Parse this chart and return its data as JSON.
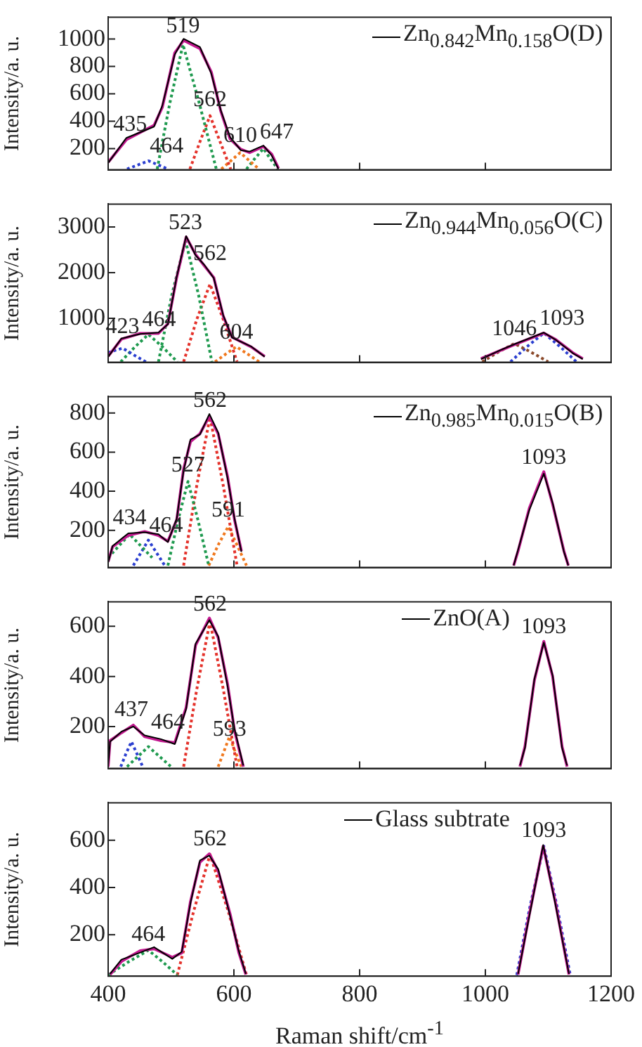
{
  "chart_data": [
    {
      "type": "line",
      "ylabel": "Intensity/a. u.",
      "xlim": [
        400,
        1200
      ],
      "xticks": [
        400,
        600,
        800,
        1000,
        1200
      ],
      "ylim": [
        45,
        1160
      ],
      "yticks": [
        200,
        400,
        600,
        800,
        1000
      ],
      "tick_labels": "y",
      "grid": false,
      "legend": "top right",
      "marker": "none",
      "series": [
        {
          "name": "Zn$_{0.842}$Mn$_{0.158}$O(D)",
          "color": "#000000",
          "x": [
            400,
            429,
            473,
            486,
            506,
            520,
            546,
            564,
            579,
            594,
            611,
            625,
            647,
            660,
            671
          ],
          "values": [
            95,
            278,
            360,
            512,
            888,
            1002,
            942,
            748,
            482,
            282,
            188,
            178,
            222,
            150,
            50
          ]
        },
        {
          "color": "#c2188f",
          "x": [
            400,
            429,
            473,
            486,
            506,
            520,
            546,
            564,
            579,
            594,
            611,
            625,
            647,
            660,
            671
          ],
          "values": [
            100,
            265,
            370,
            500,
            900,
            990,
            930,
            760,
            475,
            270,
            195,
            170,
            215,
            160,
            55
          ]
        },
        {
          "color": "#2b3fd0",
          "line_style": "dotted",
          "x": [
            430,
            447,
            464,
            480,
            495
          ],
          "values": [
            50,
            80,
            110,
            80,
            50
          ]
        },
        {
          "color": "#1f9a4f",
          "line_style": "dotted",
          "x": [
            478,
            498,
            519,
            545,
            572
          ],
          "values": [
            50,
            530,
            960,
            530,
            50
          ]
        },
        {
          "color": "#e4322b",
          "line_style": "dotted",
          "x": [
            530,
            546,
            562,
            578,
            595
          ],
          "values": [
            50,
            250,
            440,
            250,
            50
          ]
        },
        {
          "color": "#f0781e",
          "line_style": "dotted",
          "x": [
            580,
            595,
            610,
            625,
            640
          ],
          "values": [
            50,
            110,
            170,
            110,
            50
          ]
        },
        {
          "color": "#1f9a4f",
          "line_style": "dotted",
          "x": [
            620,
            633,
            647,
            658,
            670
          ],
          "values": [
            50,
            125,
            200,
            125,
            50
          ]
        }
      ],
      "annotations": [
        {
          "text": "519",
          "x": 519,
          "y": 990
        },
        {
          "text": "435",
          "x": 435,
          "y": 270
        },
        {
          "text": "464",
          "x": 464,
          "y": 110
        },
        {
          "text": "562",
          "x": 562,
          "y": 450
        },
        {
          "text": "610",
          "x": 610,
          "y": 190
        },
        {
          "text": "647",
          "x": 647,
          "y": 215
        }
      ]
    },
    {
      "type": "line",
      "ylabel": "Intensity/a. u.",
      "xlim": [
        400,
        1200
      ],
      "xticks": [
        400,
        600,
        800,
        1000,
        1200
      ],
      "ylim": [
        40,
        3500
      ],
      "yticks": [
        1000,
        2000,
        3000
      ],
      "tick_labels": "y",
      "grid": false,
      "legend": "top right",
      "marker": "none",
      "series": [
        {
          "name": "Zn$_{0.944}$Mn$_{0.056}$O(C)",
          "color": "#000000",
          "x": [
            400,
            421,
            451,
            480,
            495,
            509,
            524,
            539,
            553,
            568,
            583,
            597,
            627,
            649,
            800,
            993,
            1023,
            1045,
            1093,
            1111,
            1139,
            1155
          ],
          "values": [
            160,
            560,
            660,
            690,
            870,
            1910,
            2800,
            2380,
            2170,
            1880,
            1070,
            580,
            390,
            160,
            null,
            110,
            300,
            430,
            690,
            540,
            240,
            110
          ]
        },
        {
          "color": "#c2188f",
          "x": [
            400,
            421,
            451,
            480,
            495,
            509,
            524,
            539,
            553,
            568,
            583,
            597,
            627,
            649,
            800,
            993,
            1023,
            1045,
            1093,
            1111,
            1139,
            1155
          ],
          "values": [
            170,
            546,
            672,
            672,
            880,
            1894,
            2780,
            2400,
            2150,
            1894,
            1050,
            590,
            380,
            170,
            null,
            120,
            293,
            420,
            680,
            546,
            250,
            120
          ]
        },
        {
          "color": "#2b3fd0",
          "line_style": "dotted",
          "x": [
            400,
            411,
            423,
            441,
            460
          ],
          "values": [
            250,
            300,
            350,
            200,
            50
          ]
        },
        {
          "color": "#1f9a4f",
          "line_style": "dotted",
          "x": [
            420,
            442,
            464,
            487,
            510
          ],
          "values": [
            50,
            370,
            650,
            370,
            50
          ]
        },
        {
          "color": "#1f9a4f",
          "line_style": "dotted",
          "x": [
            480,
            501,
            523,
            544,
            565
          ],
          "values": [
            50,
            1500,
            2700,
            1500,
            50
          ]
        },
        {
          "color": "#e4322b",
          "line_style": "dotted",
          "x": [
            520,
            541,
            562,
            583,
            605
          ],
          "values": [
            50,
            980,
            1750,
            980,
            50
          ]
        },
        {
          "color": "#f0781e",
          "line_style": "dotted",
          "x": [
            570,
            587,
            604,
            622,
            640
          ],
          "values": [
            50,
            220,
            380,
            220,
            50
          ]
        },
        {
          "color": "#8b4a2b",
          "line_style": "dotted",
          "x": [
            995,
            1020,
            1046,
            1073,
            1100
          ],
          "values": [
            50,
            260,
            450,
            260,
            50
          ]
        },
        {
          "color": "#2b3fd0",
          "line_style": "dotted",
          "x": [
            1040,
            1066,
            1093,
            1119,
            1145
          ],
          "values": [
            50,
            380,
            680,
            380,
            50
          ]
        }
      ],
      "annotations": [
        {
          "text": "523",
          "x": 523,
          "y": 2780
        },
        {
          "text": "562",
          "x": 562,
          "y": 2100
        },
        {
          "text": "423",
          "x": 423,
          "y": 500
        },
        {
          "text": "464",
          "x": 464,
          "y": 650
        },
        {
          "text": "604",
          "x": 604,
          "y": 380
        },
        {
          "text": "1046",
          "x": 1046,
          "y": 450
        },
        {
          "text": "1093",
          "x": 1093,
          "y": 680
        }
      ]
    },
    {
      "type": "line",
      "ylabel": "Intensity/a. u.",
      "xlim": [
        400,
        1200
      ],
      "xticks": [
        400,
        600,
        800,
        1000,
        1200
      ],
      "ylim": [
        10,
        884
      ],
      "yticks": [
        200,
        400,
        600,
        800
      ],
      "tick_labels": "y",
      "grid": false,
      "legend": "top right",
      "marker": "none",
      "series": [
        {
          "name": "Zn$_{0.985}$Mn$_{0.015}$O(B)",
          "color": "#000000",
          "x": [
            400,
            407,
            432,
            458,
            480,
            495,
            509,
            520,
            531,
            546,
            561,
            575,
            590,
            601,
            612,
            800,
            1045,
            1052,
            1070,
            1093,
            1107,
            1125,
            1132
          ],
          "values": [
            35,
            120,
            185,
            190,
            180,
            140,
            260,
            505,
            665,
            690,
            795,
            700,
            465,
            260,
            90,
            null,
            20,
            100,
            305,
            490,
            340,
            90,
            20
          ]
        },
        {
          "color": "#c2188f",
          "x": [
            400,
            407,
            432,
            458,
            480,
            495,
            509,
            520,
            531,
            546,
            561,
            575,
            590,
            601,
            612,
            800,
            1045,
            1052,
            1070,
            1093,
            1107,
            1125,
            1132
          ],
          "values": [
            40,
            116,
            174,
            194,
            174,
            144,
            254,
            514,
            654,
            694,
            784,
            694,
            474,
            254,
            94,
            null,
            20,
            94,
            314,
            500,
            334,
            94,
            20
          ]
        },
        {
          "color": "#1f9a4f",
          "line_style": "dotted",
          "x": [
            400,
            417,
            434,
            452,
            470
          ],
          "values": [
            60,
            120,
            180,
            120,
            60
          ]
        },
        {
          "color": "#2b3fd0",
          "line_style": "dotted",
          "x": [
            440,
            452,
            464,
            477,
            490
          ],
          "values": [
            20,
            85,
            150,
            85,
            20
          ]
        },
        {
          "color": "#1f9a4f",
          "line_style": "dotted",
          "x": [
            495,
            511,
            527,
            543,
            560
          ],
          "values": [
            20,
            250,
            450,
            250,
            20
          ]
        },
        {
          "color": "#e4322b",
          "line_style": "dotted",
          "x": [
            520,
            541,
            562,
            583,
            605
          ],
          "values": [
            20,
            430,
            780,
            430,
            20
          ]
        },
        {
          "color": "#f0781e",
          "line_style": "dotted",
          "x": [
            560,
            575,
            591,
            605,
            620
          ],
          "values": [
            20,
            125,
            220,
            125,
            20
          ]
        }
      ],
      "annotations": [
        {
          "text": "562",
          "x": 562,
          "y": 790
        },
        {
          "text": "527",
          "x": 527,
          "y": 460
        },
        {
          "text": "434",
          "x": 434,
          "y": 190
        },
        {
          "text": "464",
          "x": 464,
          "y": 150
        },
        {
          "text": "591",
          "x": 591,
          "y": 230
        },
        {
          "text": "1093",
          "x": 1093,
          "y": 500
        }
      ]
    },
    {
      "type": "line",
      "ylabel": "Intensity/a. u.",
      "xlim": [
        400,
        1200
      ],
      "xticks": [
        400,
        600,
        800,
        1000,
        1200
      ],
      "ylim": [
        33,
        698
      ],
      "yticks": [
        200,
        400,
        600
      ],
      "tick_labels": "y",
      "grid": false,
      "legend": "top right",
      "marker": "none",
      "series": [
        {
          "name": "ZnO(A)",
          "color": "#000000",
          "x": [
            400,
            403,
            421,
            440,
            458,
            484,
            506,
            524,
            539,
            561,
            575,
            590,
            601,
            615,
            800,
            1055,
            1063,
            1078,
            1093,
            1107,
            1122,
            1130
          ],
          "values": [
            45,
            140,
            180,
            200,
            165,
            150,
            130,
            270,
            530,
            625,
            560,
            360,
            190,
            45,
            null,
            45,
            115,
            390,
            535,
            405,
            115,
            45
          ]
        },
        {
          "color": "#c2188f",
          "x": [
            400,
            403,
            421,
            440,
            458,
            484,
            506,
            524,
            539,
            561,
            575,
            590,
            601,
            615,
            800,
            1055,
            1063,
            1078,
            1093,
            1107,
            1122,
            1130
          ],
          "values": [
            40,
            144,
            175,
            206,
            160,
            144,
            136,
            276,
            524,
            633,
            555,
            369,
            183,
            40,
            null,
            40,
            121,
            385,
            540,
            400,
            121,
            40
          ]
        },
        {
          "color": "#2b3fd0",
          "line_style": "dotted",
          "x": [
            420,
            428,
            437,
            446,
            455
          ],
          "values": [
            40,
            90,
            140,
            90,
            40
          ]
        },
        {
          "color": "#1f9a4f",
          "line_style": "dotted",
          "x": [
            430,
            447,
            464,
            482,
            500
          ],
          "values": [
            40,
            80,
            120,
            80,
            40
          ]
        },
        {
          "color": "#e4322b",
          "line_style": "dotted",
          "x": [
            520,
            541,
            562,
            583,
            605
          ],
          "values": [
            40,
            350,
            620,
            350,
            40
          ]
        },
        {
          "color": "#f0781e",
          "line_style": "dotted",
          "x": [
            575,
            584,
            593,
            602,
            612
          ],
          "values": [
            40,
            100,
            160,
            100,
            40
          ]
        }
      ],
      "annotations": [
        {
          "text": "562",
          "x": 562,
          "y": 630
        },
        {
          "text": "437",
          "x": 437,
          "y": 210
        },
        {
          "text": "464",
          "x": 464,
          "y": 160
        },
        {
          "text": "593",
          "x": 593,
          "y": 130
        },
        {
          "text": "1093",
          "x": 1093,
          "y": 540
        }
      ]
    },
    {
      "type": "line",
      "ylabel": "Intensity/a. u.",
      "xlabel": "Raman shift/cm$^{-1}$",
      "xlim": [
        400,
        1200
      ],
      "xticks": [
        400,
        600,
        800,
        1000,
        1200
      ],
      "ylim": [
        25,
        759
      ],
      "yticks": [
        200,
        400,
        600
      ],
      "grid": false,
      "legend": "top right",
      "marker": "none",
      "series": [
        {
          "name": "Glass subtrate",
          "color": "#000000",
          "x": [
            403,
            421,
            451,
            473,
            502,
            517,
            531,
            546,
            561,
            575,
            594,
            608,
            619,
            800,
            1052,
            1070,
            1092,
            1111,
            1133
          ],
          "values": [
            35,
            95,
            125,
            148,
            98,
            128,
            335,
            515,
            535,
            478,
            280,
            130,
            35,
            null,
            35,
            280,
            580,
            335,
            35
          ]
        },
        {
          "color": "#c2188f",
          "x": [
            403,
            421,
            451,
            473,
            502,
            517,
            531,
            546,
            561,
            575,
            594,
            608,
            619,
            800,
            1052,
            1070,
            1092,
            1111,
            1133
          ],
          "values": [
            32,
            87,
            133,
            141,
            105,
            123,
            342,
            507,
            543,
            470,
            288,
            123,
            32,
            null,
            32,
            288,
            575,
            342,
            32
          ]
        },
        {
          "color": "#1f9a4f",
          "line_style": "dotted",
          "x": [
            400,
            432,
            464,
            487,
            510
          ],
          "values": [
            30,
            85,
            135,
            85,
            30
          ]
        },
        {
          "color": "#e4322b",
          "line_style": "dotted",
          "x": [
            510,
            536,
            562,
            591,
            620
          ],
          "values": [
            30,
            300,
            540,
            300,
            30
          ]
        },
        {
          "color": "#2b3fd0",
          "line_style": "dotted",
          "x": [
            1050,
            1071,
            1093,
            1114,
            1135
          ],
          "values": [
            30,
            320,
            575,
            320,
            30
          ]
        }
      ],
      "annotations": [
        {
          "text": "464",
          "x": 464,
          "y": 140
        },
        {
          "text": "562",
          "x": 562,
          "y": 545
        },
        {
          "text": "1093",
          "x": 1093,
          "y": 580
        }
      ]
    }
  ]
}
